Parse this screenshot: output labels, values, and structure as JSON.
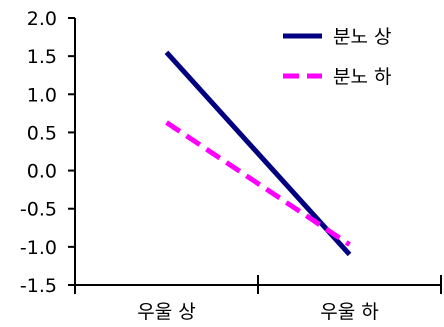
{
  "chart_data": {
    "type": "line",
    "categories": [
      "우울 상",
      "우울 하"
    ],
    "ylim": [
      -1.5,
      2.0
    ],
    "y_ticks": [
      "2.0",
      "1.5",
      "1.0",
      "0.5",
      "0.0",
      "-0.5",
      "-1.0",
      "-1.5"
    ],
    "y_tick_values": [
      2.0,
      1.5,
      1.0,
      0.5,
      0.0,
      -0.5,
      -1.0,
      -1.5
    ],
    "grid": false,
    "legend_position": "top-right",
    "series": [
      {
        "name": "분노 상",
        "values": [
          1.55,
          -1.1
        ],
        "color": "#000080",
        "dash": "solid"
      },
      {
        "name": "분노 하",
        "values": [
          0.63,
          -0.97
        ],
        "color": "#ff00ff",
        "dash": "dashed"
      }
    ]
  }
}
